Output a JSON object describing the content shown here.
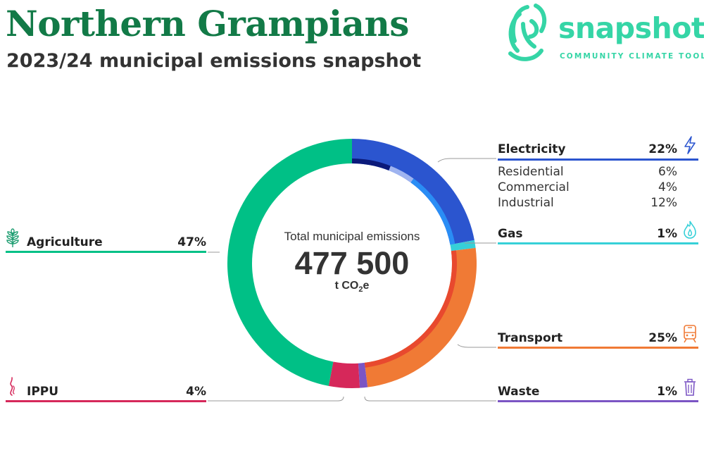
{
  "header": {
    "title": "Northern Grampians",
    "subtitle": "2023/24 municipal emissions snapshot"
  },
  "brand": {
    "name": "snapshot",
    "tagline": "COMMUNITY CLIMATE TOOL",
    "color": "#35d5a6",
    "logo_icon": "fingerprint-swirl-icon"
  },
  "center": {
    "label": "Total municipal emissions",
    "value": "477 500",
    "unit": "t CO",
    "unit_sub": "2",
    "unit_end": "e"
  },
  "categories": {
    "electricity": {
      "label": "Electricity",
      "pct": "22%",
      "color": "#2b55cf",
      "icon": "lightning-bolt-icon"
    },
    "residential": {
      "label": "Residential",
      "pct": "6%"
    },
    "commercial": {
      "label": "Commercial",
      "pct": "4%"
    },
    "industrial": {
      "label": "Industrial",
      "pct": "12%"
    },
    "gas": {
      "label": "Gas",
      "pct": "1%",
      "color": "#36d0d8",
      "icon": "flame-icon"
    },
    "transport": {
      "label": "Transport",
      "pct": "25%",
      "color": "#f07a35",
      "icon": "train-icon"
    },
    "waste": {
      "label": "Waste",
      "pct": "1%",
      "color": "#7b55c4",
      "icon": "trash-bin-icon"
    },
    "agriculture": {
      "label": "Agriculture",
      "pct": "47%",
      "color": "#00c086",
      "icon": "wheat-icon"
    },
    "ippu": {
      "label": "IPPU",
      "pct": "4%",
      "color": "#d6285a",
      "icon": "smoke-icon"
    }
  },
  "chart_data": {
    "type": "pie",
    "title": "Total municipal emissions",
    "total": 477500,
    "unit": "t CO2e",
    "series": [
      {
        "name": "Electricity",
        "value": 22,
        "color": "#2b55cf",
        "sub": [
          {
            "name": "Residential",
            "value": 6,
            "color": "#0b1a7a"
          },
          {
            "name": "Commercial",
            "value": 4,
            "color": "#9fb4f0"
          },
          {
            "name": "Industrial",
            "value": 12,
            "color": "#2a8df5"
          }
        ]
      },
      {
        "name": "Gas",
        "value": 1,
        "color": "#36d0d8"
      },
      {
        "name": "Transport",
        "value": 25,
        "color": "#f07a35",
        "sub_color": "#e8492e"
      },
      {
        "name": "Waste",
        "value": 1,
        "color": "#7b55c4"
      },
      {
        "name": "IPPU",
        "value": 4,
        "color": "#d6285a"
      },
      {
        "name": "Agriculture",
        "value": 47,
        "color": "#00c086"
      }
    ]
  }
}
